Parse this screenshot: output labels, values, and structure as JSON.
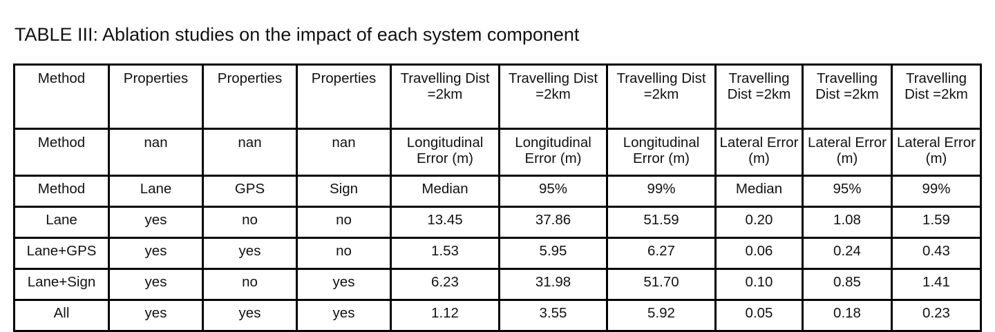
{
  "caption": "TABLE III: Ablation studies on the impact of each system component",
  "table": {
    "rows": [
      [
        "Method",
        "Properties",
        "Properties",
        "Properties",
        "Travelling Dist =2km",
        "Travelling Dist =2km",
        "Travelling Dist =2km",
        "Travelling Dist =2km",
        "Travelling Dist =2km",
        "Travelling Dist =2km"
      ],
      [
        "Method",
        "nan",
        "nan",
        "nan",
        "Longitudinal Error (m)",
        "Longitudinal Error (m)",
        "Longitudinal Error (m)",
        "Lateral Error (m)",
        "Lateral Error (m)",
        "Lateral Error (m)"
      ],
      [
        "Method",
        "Lane",
        "GPS",
        "Sign",
        "Median",
        "95%",
        "99%",
        "Median",
        "95%",
        "99%"
      ],
      [
        "Lane",
        "yes",
        "no",
        "no",
        "13.45",
        "37.86",
        "51.59",
        "0.20",
        "1.08",
        "1.59"
      ],
      [
        "Lane+GPS",
        "yes",
        "yes",
        "no",
        "1.53",
        "5.95",
        "6.27",
        "0.06",
        "0.24",
        "0.43"
      ],
      [
        "Lane+Sign",
        "yes",
        "no",
        "yes",
        "6.23",
        "31.98",
        "51.70",
        "0.10",
        "0.85",
        "1.41"
      ],
      [
        "All",
        "yes",
        "yes",
        "yes",
        "1.12",
        "3.55",
        "5.92",
        "0.05",
        "0.18",
        "0.23"
      ]
    ]
  }
}
